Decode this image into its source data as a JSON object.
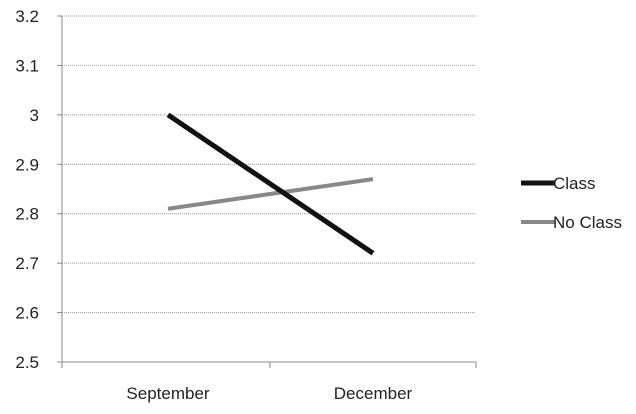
{
  "chart_data": {
    "type": "line",
    "x": [
      "September",
      "December"
    ],
    "series": [
      {
        "name": "Class",
        "values": [
          3.0,
          2.72
        ],
        "color": "#111111"
      },
      {
        "name": "No Class",
        "values": [
          2.81,
          2.87
        ],
        "color": "#888888"
      }
    ],
    "ylim": [
      2.5,
      3.2
    ],
    "yticks": [
      "2.5",
      "2.6",
      "2.7",
      "2.8",
      "2.9",
      "3",
      "3.1",
      "3.2"
    ],
    "grid": true,
    "legend": "right"
  }
}
